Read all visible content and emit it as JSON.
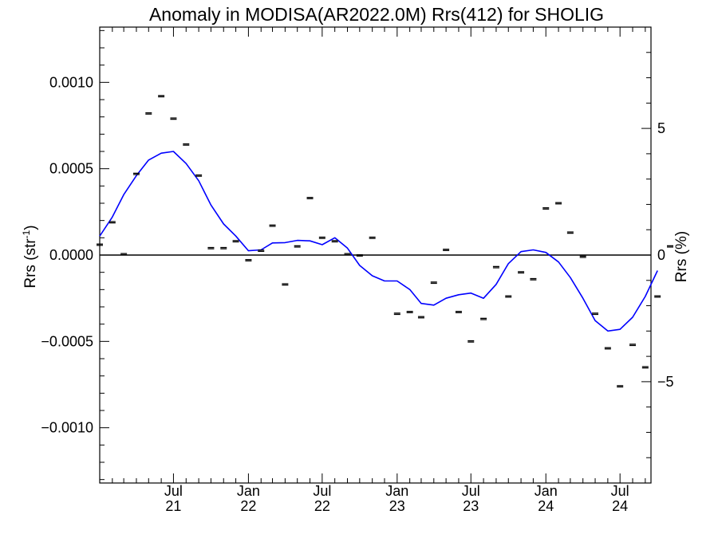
{
  "chart_data": {
    "type": "line",
    "title": "Anomaly in MODISA(AR2022.0M) Rrs(412) for SHOLIG",
    "ylabel_left": "Rrs (str",
    "ylabel_left_sup": "-1",
    "ylabel_left_close": ")",
    "ylabel_right": "Rrs (%)",
    "x_range": [
      "2021-01-01",
      "2024-09-15"
    ],
    "ylim_left": [
      -0.00132,
      0.00132
    ],
    "ylim_right": [
      -9.0,
      9.0
    ],
    "zero_line": true,
    "grid": false,
    "x_ticks": [
      {
        "date": "2021-07-01",
        "month": "Jul",
        "year": "21"
      },
      {
        "date": "2022-01-01",
        "month": "Jan",
        "year": "22"
      },
      {
        "date": "2022-07-01",
        "month": "Jul",
        "year": "22"
      },
      {
        "date": "2023-01-01",
        "month": "Jan",
        "year": "23"
      },
      {
        "date": "2023-07-01",
        "month": "Jul",
        "year": "23"
      },
      {
        "date": "2024-01-01",
        "month": "Jan",
        "year": "24"
      },
      {
        "date": "2024-07-01",
        "month": "Jul",
        "year": "24"
      }
    ],
    "y_ticks_left": [
      {
        "value": 0.001,
        "label": "0.0010"
      },
      {
        "value": 0.0005,
        "label": "0.0005"
      },
      {
        "value": 0.0,
        "label": "0.0000"
      },
      {
        "value": -0.0005,
        "label": "−0.0005"
      },
      {
        "value": -0.001,
        "label": "−0.0010"
      }
    ],
    "y_ticks_right": [
      {
        "value": 5,
        "label": "5"
      },
      {
        "value": 0,
        "label": "0"
      },
      {
        "value": -5,
        "label": "−5"
      }
    ],
    "series": [
      {
        "kind": "points",
        "color": "#000000",
        "data": [
          {
            "date": "2021-01-01",
            "y": 6e-05
          },
          {
            "date": "2021-02-01",
            "y": 0.00019
          },
          {
            "date": "2021-03-01",
            "y": 5e-06
          },
          {
            "date": "2021-04-01",
            "y": 0.00047
          },
          {
            "date": "2021-05-01",
            "y": 0.00082
          },
          {
            "date": "2021-06-01",
            "y": 0.00092
          },
          {
            "date": "2021-07-01",
            "y": 0.00079
          },
          {
            "date": "2021-08-01",
            "y": 0.00064
          },
          {
            "date": "2021-09-01",
            "y": 0.00046
          },
          {
            "date": "2021-10-01",
            "y": 4e-05
          },
          {
            "date": "2021-11-01",
            "y": 4e-05
          },
          {
            "date": "2021-12-01",
            "y": 8e-05
          },
          {
            "date": "2022-01-01",
            "y": -3e-05
          },
          {
            "date": "2022-02-01",
            "y": 2.5e-05
          },
          {
            "date": "2022-03-01",
            "y": 0.00017
          },
          {
            "date": "2022-04-01",
            "y": -0.00017
          },
          {
            "date": "2022-05-01",
            "y": 5e-05
          },
          {
            "date": "2022-06-01",
            "y": 0.00033
          },
          {
            "date": "2022-07-01",
            "y": 0.0001
          },
          {
            "date": "2022-08-01",
            "y": 8e-05
          },
          {
            "date": "2022-09-01",
            "y": 5e-06
          },
          {
            "date": "2022-10-01",
            "y": -2e-06
          },
          {
            "date": "2022-11-01",
            "y": 0.0001
          },
          {
            "date": "2023-01-01",
            "y": -0.00034
          },
          {
            "date": "2023-02-01",
            "y": -0.00033
          },
          {
            "date": "2023-03-01",
            "y": -0.00036
          },
          {
            "date": "2023-04-01",
            "y": -0.00016
          },
          {
            "date": "2023-05-01",
            "y": 3e-05
          },
          {
            "date": "2023-06-01",
            "y": -0.00033
          },
          {
            "date": "2023-07-01",
            "y": -0.0005
          },
          {
            "date": "2023-08-01",
            "y": -0.00037
          },
          {
            "date": "2023-09-01",
            "y": -7e-05
          },
          {
            "date": "2023-10-01",
            "y": -0.00024
          },
          {
            "date": "2023-11-01",
            "y": -0.0001
          },
          {
            "date": "2023-12-01",
            "y": -0.00014
          },
          {
            "date": "2024-01-01",
            "y": 0.00027
          },
          {
            "date": "2024-02-01",
            "y": 0.0003
          },
          {
            "date": "2024-03-01",
            "y": 0.00013
          },
          {
            "date": "2024-04-01",
            "y": -1e-05
          },
          {
            "date": "2024-05-01",
            "y": -0.00034
          },
          {
            "date": "2024-06-01",
            "y": -0.00054
          },
          {
            "date": "2024-07-01",
            "y": -0.00076
          },
          {
            "date": "2024-08-01",
            "y": -0.00052
          },
          {
            "date": "2024-09-01",
            "y": -0.00065
          },
          {
            "date": "2024-10-01",
            "y": -0.00024
          },
          {
            "date": "2024-11-01",
            "y": 5e-05
          }
        ]
      },
      {
        "kind": "line",
        "color": "#0000ff",
        "data": [
          {
            "date": "2021-01-01",
            "y": 0.00011
          },
          {
            "date": "2021-02-01",
            "y": 0.00022
          },
          {
            "date": "2021-03-01",
            "y": 0.00035
          },
          {
            "date": "2021-04-01",
            "y": 0.00046
          },
          {
            "date": "2021-05-01",
            "y": 0.00055
          },
          {
            "date": "2021-06-01",
            "y": 0.00059
          },
          {
            "date": "2021-07-01",
            "y": 0.0006
          },
          {
            "date": "2021-08-01",
            "y": 0.00053
          },
          {
            "date": "2021-09-01",
            "y": 0.00043
          },
          {
            "date": "2021-10-01",
            "y": 0.00029
          },
          {
            "date": "2021-11-01",
            "y": 0.00018
          },
          {
            "date": "2021-12-01",
            "y": 0.00011
          },
          {
            "date": "2022-01-01",
            "y": 2.5e-05
          },
          {
            "date": "2022-02-01",
            "y": 3e-05
          },
          {
            "date": "2022-03-01",
            "y": 7e-05
          },
          {
            "date": "2022-04-01",
            "y": 7.2e-05
          },
          {
            "date": "2022-05-01",
            "y": 8.5e-05
          },
          {
            "date": "2022-06-01",
            "y": 8.2e-05
          },
          {
            "date": "2022-07-01",
            "y": 6e-05
          },
          {
            "date": "2022-08-01",
            "y": 0.0001
          },
          {
            "date": "2022-09-01",
            "y": 4e-05
          },
          {
            "date": "2022-10-01",
            "y": -6e-05
          },
          {
            "date": "2022-11-01",
            "y": -0.00012
          },
          {
            "date": "2022-12-01",
            "y": -0.00015
          },
          {
            "date": "2023-01-01",
            "y": -0.00015
          },
          {
            "date": "2023-02-01",
            "y": -0.0002
          },
          {
            "date": "2023-03-01",
            "y": -0.00028
          },
          {
            "date": "2023-04-01",
            "y": -0.00029
          },
          {
            "date": "2023-05-01",
            "y": -0.00025
          },
          {
            "date": "2023-06-01",
            "y": -0.00023
          },
          {
            "date": "2023-07-01",
            "y": -0.00022
          },
          {
            "date": "2023-08-01",
            "y": -0.00025
          },
          {
            "date": "2023-09-01",
            "y": -0.00017
          },
          {
            "date": "2023-10-01",
            "y": -5e-05
          },
          {
            "date": "2023-11-01",
            "y": 2e-05
          },
          {
            "date": "2023-12-01",
            "y": 3e-05
          },
          {
            "date": "2024-01-01",
            "y": 1.5e-05
          },
          {
            "date": "2024-02-01",
            "y": -4e-05
          },
          {
            "date": "2024-03-01",
            "y": -0.00013
          },
          {
            "date": "2024-04-01",
            "y": -0.00025
          },
          {
            "date": "2024-05-01",
            "y": -0.00038
          },
          {
            "date": "2024-06-01",
            "y": -0.00044
          },
          {
            "date": "2024-07-01",
            "y": -0.00043
          },
          {
            "date": "2024-08-01",
            "y": -0.00036
          },
          {
            "date": "2024-09-01",
            "y": -0.00024
          },
          {
            "date": "2024-10-01",
            "y": -9e-05
          }
        ]
      }
    ]
  }
}
